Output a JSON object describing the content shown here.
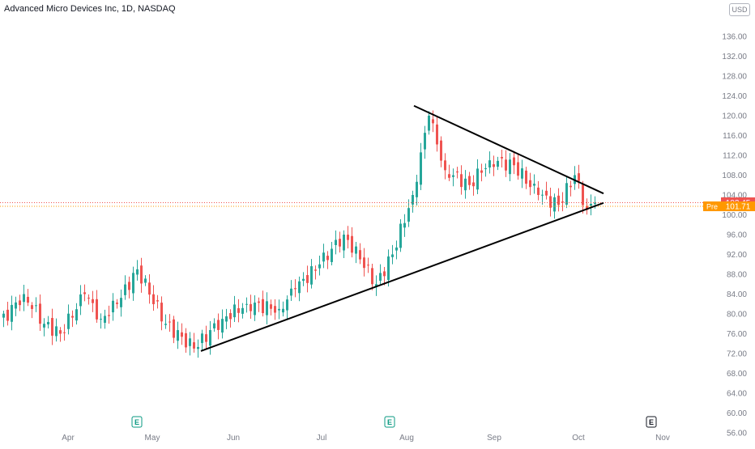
{
  "header": {
    "title": "Advanced Micro Devices Inc, 1D, NASDAQ",
    "currency": "USD"
  },
  "price_tags": {
    "last": "102.45",
    "pre_label": "Pre",
    "pre_value": "101.71"
  },
  "earnings_marker": "E",
  "colors": {
    "up": "#26a69a",
    "down": "#ef5350",
    "pre": "#ff9800",
    "axis_text": "#787b86",
    "trendline": "#000000"
  },
  "chart_data": {
    "type": "candlestick",
    "title": "Advanced Micro Devices Inc, 1D, NASDAQ",
    "ylim": [
      56,
      138
    ],
    "y_ticks": [
      "56.00",
      "60.00",
      "64.00",
      "68.00",
      "72.00",
      "76.00",
      "80.00",
      "84.00",
      "88.00",
      "92.00",
      "96.00",
      "100.00",
      "104.00",
      "108.00",
      "112.00",
      "116.00",
      "120.00",
      "124.00",
      "128.00",
      "132.00",
      "136.00"
    ],
    "x_ticks": [
      "Apr",
      "May",
      "Jun",
      "Jul",
      "Aug",
      "Sep",
      "Oct",
      "Nov"
    ],
    "last_price": 102.45,
    "pre_market_price": 101.71,
    "earnings_markers": [
      "May",
      "Aug",
      "Nov"
    ],
    "segments": [
      {
        "from": 78,
        "to": 84,
        "n": 6
      },
      {
        "from": 84,
        "to": 78,
        "n": 5
      },
      {
        "from": 78,
        "to": 76,
        "n": 4
      },
      {
        "from": 76,
        "to": 84,
        "n": 6
      },
      {
        "from": 84,
        "to": 79,
        "n": 4
      },
      {
        "from": 79,
        "to": 82,
        "n": 4
      },
      {
        "from": 82,
        "to": 89,
        "n": 5
      },
      {
        "from": 89,
        "to": 78,
        "n": 7
      },
      {
        "from": 78,
        "to": 73,
        "n": 7
      },
      {
        "from": 73,
        "to": 79,
        "n": 7
      },
      {
        "from": 79,
        "to": 82,
        "n": 6
      },
      {
        "from": 82,
        "to": 81,
        "n": 8
      },
      {
        "from": 81,
        "to": 85,
        "n": 4
      },
      {
        "from": 85,
        "to": 90,
        "n": 6
      },
      {
        "from": 90,
        "to": 96,
        "n": 6
      },
      {
        "from": 96,
        "to": 91,
        "n": 4
      },
      {
        "from": 91,
        "to": 86,
        "n": 4
      },
      {
        "from": 86,
        "to": 92,
        "n": 4
      },
      {
        "from": 92,
        "to": 104,
        "n": 5
      },
      {
        "from": 104,
        "to": 120,
        "n": 4
      },
      {
        "from": 120,
        "to": 109,
        "n": 4
      },
      {
        "from": 109,
        "to": 106,
        "n": 6
      },
      {
        "from": 106,
        "to": 111,
        "n": 5
      },
      {
        "from": 111,
        "to": 110,
        "n": 6
      },
      {
        "from": 110,
        "to": 104,
        "n": 6
      },
      {
        "from": 104,
        "to": 102,
        "n": 5
      },
      {
        "from": 102,
        "to": 108,
        "n": 4
      },
      {
        "from": 108,
        "to": 101,
        "n": 3
      },
      {
        "from": 101,
        "to": 102.45,
        "n": 2
      }
    ],
    "trendlines": [
      {
        "name": "upper",
        "from": {
          "x": "Aug",
          "y": 122
        },
        "to": {
          "x": "Oct",
          "y": 104.3
        }
      },
      {
        "name": "lower",
        "from": {
          "x": "May",
          "y": 72.5
        },
        "to": {
          "x": "Oct",
          "y": 102.4
        }
      }
    ]
  }
}
